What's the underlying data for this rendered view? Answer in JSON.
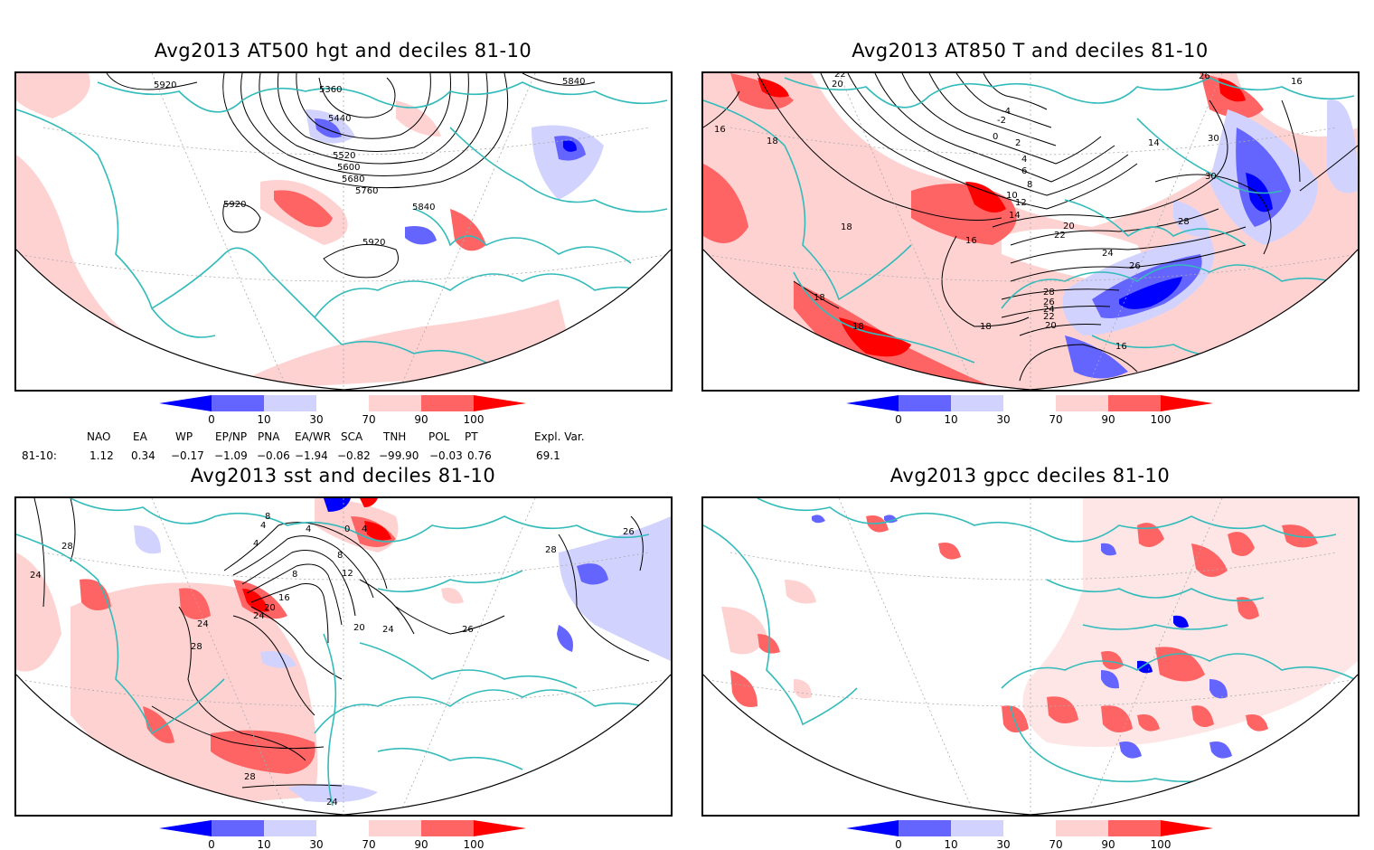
{
  "panels": [
    {
      "id": "p1",
      "title": "Avg2013 AT500 hgt and deciles 81-10"
    },
    {
      "id": "p2",
      "title": "Avg2013 AT850 T and deciles 81-10"
    },
    {
      "id": "p3",
      "title": "Avg2013 sst and deciles 81-10"
    },
    {
      "id": "p4",
      "title": "Avg2013 gpcc deciles 81-10"
    }
  ],
  "colorbar": {
    "ticks": [
      "0",
      "10",
      "30",
      "70",
      "90",
      "100"
    ],
    "colors": [
      "#0000ff",
      "#6464ff",
      "#d2d2ff",
      "#ffffff",
      "#ffd2d2",
      "#ff6464",
      "#ff0000"
    ]
  },
  "p1_labels": [
    "5920",
    "5360",
    "5440",
    "5840",
    "5520",
    "5600",
    "5680",
    "5760",
    "5920",
    "5840",
    "5920"
  ],
  "p2_labels": [
    "22",
    "20",
    "26",
    "16",
    "16",
    "18",
    "-4",
    "-2",
    "0",
    "2",
    "4",
    "6",
    "8",
    "10",
    "12",
    "14",
    "16",
    "14",
    "30",
    "30",
    "28",
    "20",
    "22",
    "24",
    "26",
    "28",
    "26",
    "24",
    "22",
    "20",
    "18",
    "18",
    "18",
    "16",
    "18"
  ],
  "p3_labels": [
    "28",
    "24",
    "8",
    "4",
    "4",
    "0",
    "4",
    "4",
    "8",
    "8",
    "12",
    "16",
    "20",
    "24",
    "28",
    "20",
    "24",
    "26",
    "28",
    "26",
    "24",
    "28",
    "24"
  ],
  "indices": {
    "row_label": "81-10:",
    "names": [
      "NAO",
      "EA",
      "WP",
      "EP/NP",
      "PNA",
      "EA/WR",
      "SCA",
      "TNH",
      "POL",
      "PT",
      "Expl. Var."
    ],
    "values": [
      "1.12",
      "0.34",
      "−0.17",
      "−1.09",
      "−0.06",
      "−1.94",
      "−0.82",
      "−99.90",
      "−0.03",
      "0.76",
      "69.1"
    ]
  }
}
